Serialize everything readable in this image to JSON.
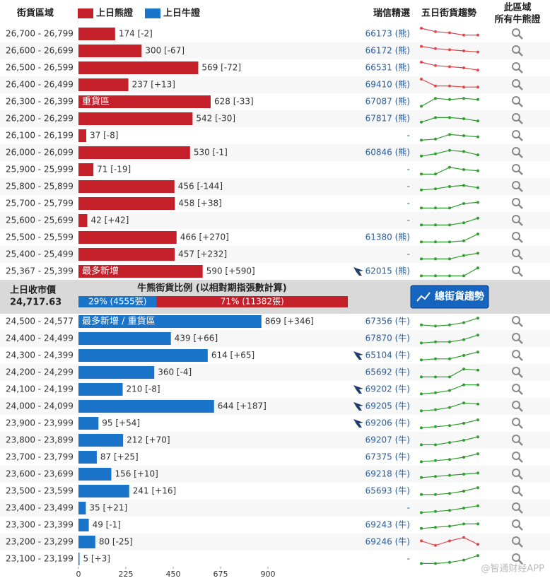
{
  "chart_data": {
    "type": "bar",
    "orientation": "horizontal",
    "header": {
      "range": "街貨區域",
      "pick": "瑞信精選",
      "trend": "五日街貨趨勢",
      "all_line1": "此區域",
      "all_line2": "所有牛熊證"
    },
    "xlim": [
      0,
      900
    ],
    "xticks": [
      0,
      225,
      450,
      675,
      900
    ],
    "series": [
      {
        "name": "上日熊證",
        "color": "#c4202a",
        "categories": [
          "26,700 - 26,799",
          "26,600 - 26,699",
          "26,500 - 26,599",
          "26,400 - 26,499",
          "26,300 - 26,399",
          "26,200 - 26,299",
          "26,100 - 26,199",
          "26,000 - 26,099",
          "25,900 - 25,999",
          "25,800 - 25,899",
          "25,700 - 25,799",
          "25,600 - 25,699",
          "25,500 - 25,599",
          "25,400 - 25,499",
          "25,367 - 25,399"
        ],
        "values": [
          174,
          300,
          569,
          237,
          628,
          542,
          37,
          530,
          71,
          456,
          458,
          42,
          466,
          457,
          590
        ],
        "value_labels": [
          "174 [-2]",
          "300 [-67]",
          "569 [-72]",
          "237 [+13]",
          "628 [-33]",
          "542 [-30]",
          "37 [-8]",
          "530 [-1]",
          "71 [-19]",
          "456 [-144]",
          "458 [+38]",
          "42 [+42]",
          "466 [+270]",
          "457 [+232]",
          "590 [+590]"
        ],
        "tags": [
          null,
          null,
          null,
          null,
          "重貨區",
          null,
          null,
          null,
          null,
          null,
          null,
          null,
          null,
          null,
          "最多新增"
        ],
        "picks": [
          "66173 (熊)",
          "66172 (熊)",
          "66531 (熊)",
          "69410 (熊)",
          "67087 (熊)",
          "67817 (熊)",
          "-",
          "60846 (熊)",
          "-",
          "-",
          "-",
          "-",
          "61380 (熊)",
          "-",
          "62015 (熊)"
        ],
        "pick_icons": [
          false,
          false,
          false,
          false,
          false,
          false,
          false,
          false,
          false,
          false,
          false,
          false,
          false,
          false,
          true
        ],
        "trends": [
          [
            10,
            7,
            6,
            4,
            4
          ],
          [
            9,
            7,
            6,
            5,
            4
          ],
          [
            10,
            7,
            6,
            5,
            3
          ],
          [
            10,
            4,
            4,
            3,
            3
          ],
          [
            1,
            8,
            7,
            8,
            7
          ],
          [
            2,
            6,
            6,
            5,
            3
          ],
          [
            1,
            2,
            6,
            5,
            4
          ],
          [
            2,
            4,
            7,
            6,
            3
          ],
          [
            1,
            1,
            7,
            5,
            4
          ],
          [
            2,
            3,
            5,
            6,
            4
          ],
          [
            1,
            1,
            1,
            5,
            6
          ],
          [
            1,
            1,
            1,
            3,
            7
          ],
          [
            1,
            1,
            1,
            2,
            8
          ],
          [
            1,
            1,
            1,
            4,
            6
          ],
          [
            1,
            1,
            1,
            1,
            8
          ]
        ],
        "trend_colors": [
          "#e0474c",
          "#e0474c",
          "#e0474c",
          "#e0474c",
          "#2e9e2e",
          "#2e9e2e",
          "#2e9e2e",
          "#2e9e2e",
          "#2e9e2e",
          "#2e9e2e",
          "#2e9e2e",
          "#2e9e2e",
          "#2e9e2e",
          "#2e9e2e",
          "#2e9e2e"
        ]
      },
      {
        "name": "上日牛證",
        "color": "#1a74c9",
        "categories": [
          "24,500 - 24,577",
          "24,400 - 24,499",
          "24,300 - 24,399",
          "24,200 - 24,299",
          "24,100 - 24,199",
          "24,000 - 24,099",
          "23,900 - 23,999",
          "23,800 - 23,899",
          "23,700 - 23,799",
          "23,600 - 23,699",
          "23,500 - 23,599",
          "23,400 - 23,499",
          "23,300 - 23,399",
          "23,200 - 23,299",
          "23,100 - 23,199"
        ],
        "values": [
          869,
          439,
          614,
          360,
          210,
          644,
          95,
          212,
          87,
          156,
          241,
          35,
          49,
          80,
          5
        ],
        "value_labels": [
          "869 [+346]",
          "439 [+66]",
          "614 [+65]",
          "360 [-4]",
          "210 [-8]",
          "644 [+187]",
          "95 [+54]",
          "212 [+70]",
          "87 [+25]",
          "156 [+10]",
          "241 [+16]",
          "35 [+21]",
          "49 [-1]",
          "80 [-25]",
          "5 [+3]"
        ],
        "tags": [
          "最多新增 / 重貨區",
          null,
          null,
          null,
          null,
          null,
          null,
          null,
          null,
          null,
          null,
          null,
          null,
          null,
          null
        ],
        "picks": [
          "67356 (牛)",
          "67870 (牛)",
          "65104 (牛)",
          "65692 (牛)",
          "69202 (牛)",
          "69205 (牛)",
          "69206 (牛)",
          "69207 (牛)",
          "67375 (牛)",
          "69218 (牛)",
          "65693 (牛)",
          "-",
          "69243 (牛)",
          "69246 (牛)",
          "-"
        ],
        "pick_icons": [
          false,
          false,
          true,
          false,
          true,
          true,
          true,
          false,
          false,
          false,
          false,
          false,
          false,
          false,
          false
        ],
        "trends": [
          [
            2,
            1,
            2,
            4,
            8
          ],
          [
            1,
            2,
            2,
            4,
            8
          ],
          [
            1,
            2,
            2,
            5,
            8
          ],
          [
            1,
            1,
            1,
            8,
            7
          ],
          [
            1,
            2,
            4,
            9,
            9
          ],
          [
            1,
            2,
            4,
            8,
            7
          ],
          [
            1,
            2,
            3,
            5,
            8
          ],
          [
            1,
            1,
            3,
            5,
            8
          ],
          [
            1,
            2,
            3,
            5,
            8
          ],
          [
            2,
            3,
            4,
            5,
            6
          ],
          [
            2,
            2,
            3,
            5,
            8
          ],
          [
            1,
            2,
            3,
            5,
            7
          ],
          [
            2,
            3,
            4,
            6,
            6
          ],
          [
            6,
            2,
            6,
            9,
            3
          ],
          [
            1,
            1,
            2,
            4,
            8
          ]
        ],
        "trend_colors": [
          "#2e9e2e",
          "#2e9e2e",
          "#2e9e2e",
          "#2e9e2e",
          "#2e9e2e",
          "#2e9e2e",
          "#2e9e2e",
          "#2e9e2e",
          "#2e9e2e",
          "#2e9e2e",
          "#2e9e2e",
          "#2e9e2e",
          "#2e9e2e",
          "#e0474c",
          "#2e9e2e"
        ]
      }
    ],
    "summary": {
      "close_label": "上日收市價",
      "close": "24,717.63",
      "ratio_title": "牛熊街貨比例 (以相對期指張數計算)",
      "bull_pct": 29,
      "bull_label": "29% (4555張)",
      "bear_pct": 71,
      "bear_label": "71% (11382張)",
      "button": "總街貨趨勢"
    },
    "watermark": "@智通财经APP"
  }
}
